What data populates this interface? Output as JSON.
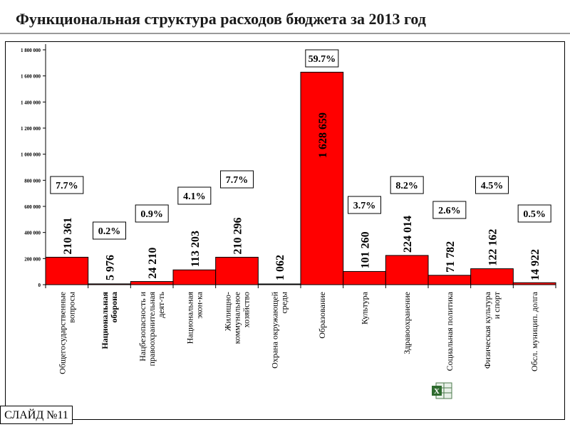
{
  "title": "Функциональная структура расходов бюджета за 2013 год",
  "slide_badge": "СЛАЙД №11",
  "icons": {
    "excel": "excel-spreadsheet-icon"
  },
  "colors": {
    "bar": "#ff0000",
    "bar_stroke": "#000000"
  },
  "chart_data": {
    "type": "bar",
    "categories": [
      [
        "Общегосударственные",
        "вопросы"
      ],
      [
        "Национальная",
        "оборона"
      ],
      [
        "Нацбезопасность и",
        "правоохранительная",
        "деят-ть"
      ],
      [
        "Национальная",
        "экон-ка"
      ],
      [
        "Жилищно-",
        "коммунальное",
        "хозяйство"
      ],
      [
        "Охрана окружающей",
        "среды"
      ],
      [
        "Образование"
      ],
      [
        "Культура"
      ],
      [
        "Здравоохранение"
      ],
      [
        "Социальная политика"
      ],
      [
        "Физическая культура",
        "и спорт"
      ],
      [
        "Обсл. муницип. долга"
      ]
    ],
    "values": [
      210361,
      5976,
      24210,
      113203,
      210296,
      1062,
      1628659,
      101260,
      224014,
      71782,
      122162,
      14922
    ],
    "value_labels": [
      "210 361",
      "5 976",
      "24 210",
      "113 203",
      "210 296",
      "1 062",
      "1 628 659",
      "101 260",
      "224 014",
      "71 782",
      "122 162",
      "14 922"
    ],
    "percent_labels": [
      "7.7%",
      "0.2%",
      "0.9%",
      "4.1%",
      "7.7%",
      "",
      "59.7%",
      "3.7%",
      "8.2%",
      "2.6%",
      "4.5%",
      "0.5%"
    ],
    "ylim": [
      0,
      1800000
    ],
    "yticks": [
      0,
      200000,
      400000,
      600000,
      800000,
      1000000,
      1200000,
      1400000,
      1600000,
      1800000
    ],
    "ytick_labels": [
      "0",
      "200 000",
      "400 000",
      "600 000",
      "800 000",
      "1 000 000",
      "1 200 000",
      "1 400 000",
      "1 600 000",
      "1 800 000"
    ],
    "grid": false,
    "legend": "none"
  }
}
